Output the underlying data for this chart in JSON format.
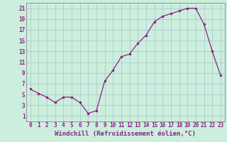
{
  "x": [
    0,
    1,
    2,
    3,
    4,
    5,
    6,
    7,
    8,
    9,
    10,
    11,
    12,
    13,
    14,
    15,
    16,
    17,
    18,
    19,
    20,
    21,
    22,
    23
  ],
  "y": [
    6.0,
    5.2,
    4.5,
    3.5,
    4.5,
    4.5,
    3.5,
    1.5,
    2.0,
    7.5,
    9.5,
    12.0,
    12.5,
    14.5,
    16.0,
    18.5,
    19.5,
    20.0,
    20.5,
    21.0,
    21.0,
    18.0,
    13.0,
    8.5
  ],
  "xlabel": "Windchill (Refroidissement éolien,°C)",
  "ylabel": "",
  "xlim": [
    -0.5,
    23.5
  ],
  "ylim": [
    0,
    22
  ],
  "yticks": [
    1,
    3,
    5,
    7,
    9,
    11,
    13,
    15,
    17,
    19,
    21
  ],
  "xticks": [
    0,
    1,
    2,
    3,
    4,
    5,
    6,
    7,
    8,
    9,
    10,
    11,
    12,
    13,
    14,
    15,
    16,
    17,
    18,
    19,
    20,
    21,
    22,
    23
  ],
  "line_color": "#882288",
  "marker_color": "#882288",
  "bg_color": "#cceedd",
  "grid_color": "#aacccc",
  "tick_color": "#882288",
  "label_color": "#882288",
  "tick_fontsize": 5.5,
  "xlabel_fontsize": 6.5
}
